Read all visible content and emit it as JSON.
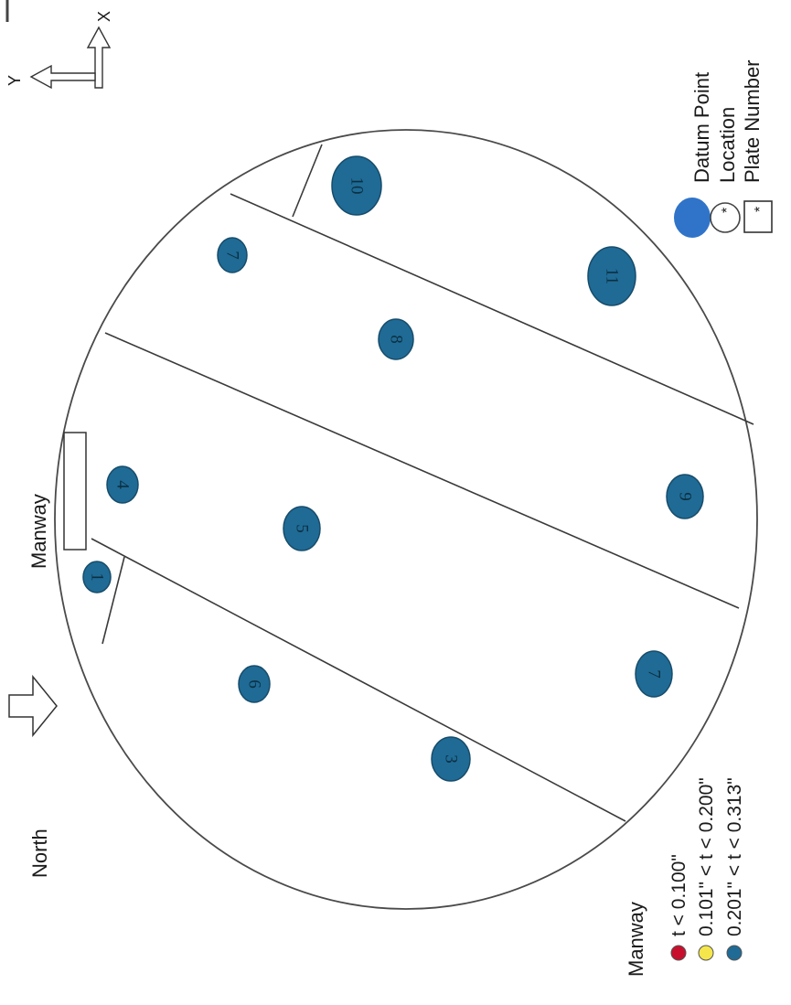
{
  "compass": {
    "north_label": "North",
    "x_axis_label": "X",
    "y_axis_label": "Y"
  },
  "manways": [
    "Manway",
    "Manway"
  ],
  "plates": [
    "1",
    "4",
    "7",
    "5",
    "3",
    "6",
    "9",
    "7",
    "8",
    "10",
    "11"
  ],
  "legend_thickness": [
    {
      "label": "t <  0.100\"",
      "color": "#c8102e"
    },
    {
      "label": "0.101\" < t < 0.200\"",
      "color": "#f5e64c"
    },
    {
      "label": "0.201\" < t < 0.313\"",
      "color": "#1f6b96"
    }
  ],
  "legend_symbols": {
    "datum_point": "Datum Point",
    "location": "Location",
    "plate_number": "Plate Number",
    "marker": "*"
  },
  "colors": {
    "datum": "#1f6b96",
    "datum_legend": "#2f74c8",
    "line": "#3a3a3a"
  }
}
